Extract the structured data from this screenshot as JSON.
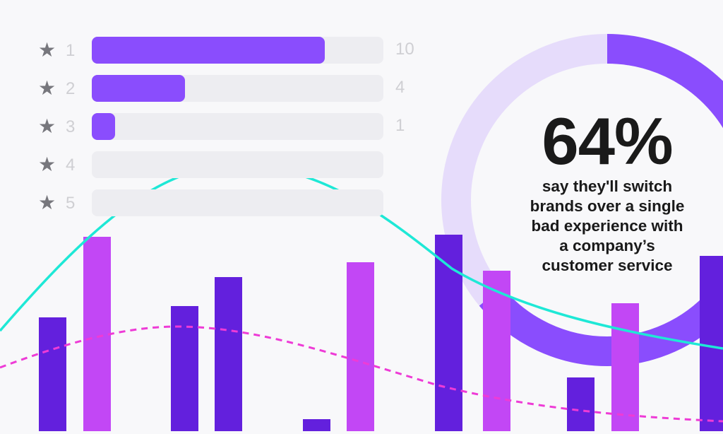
{
  "chart_data": {
    "type": "bar",
    "orientation": "horizontal",
    "categories": [
      "1",
      "2",
      "3",
      "4",
      "5"
    ],
    "values": [
      10,
      4,
      1,
      0,
      0
    ],
    "value_labels": [
      "10",
      "4",
      "1",
      "",
      ""
    ],
    "xlim": [
      0,
      12.5
    ],
    "icon": "star-icon"
  },
  "stat": {
    "percent_value": 64,
    "percent_label": "64%",
    "caption_lines": [
      "say they'll switch",
      "brands over a single",
      "bad experience with",
      "a company’s",
      "customer service"
    ]
  },
  "colors": {
    "background": "#f8f8fa",
    "rating_fill": "#8a4dfd",
    "rating_track": "#ededf1",
    "donut_filled": "#8a4dfd",
    "donut_track": "#e6dcfb",
    "bar_dark": "#6320dd",
    "bar_pink": "#c247f5",
    "line_teal": "#1ee8d6",
    "line_magenta": "#ee3bd6"
  }
}
